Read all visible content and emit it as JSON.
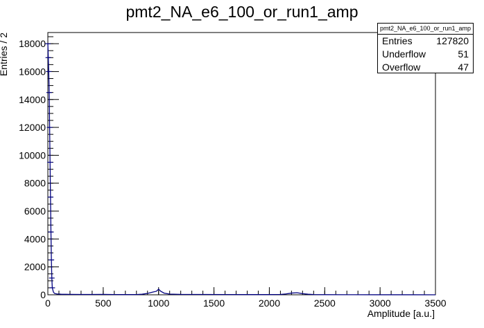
{
  "chart_data": {
    "type": "histogram",
    "title": "pmt2_NA_e6_100_or_run1_amp",
    "xlabel": "Amplitude [a.u.]",
    "ylabel": "Entries / 2",
    "xlim": [
      0,
      3500
    ],
    "ylim": [
      0,
      18800
    ],
    "x_ticks": [
      "0",
      "500",
      "1000",
      "1500",
      "2000",
      "2500",
      "3000",
      "3500"
    ],
    "y_ticks": [
      "0",
      "2000",
      "4000",
      "6000",
      "8000",
      "10000",
      "12000",
      "14000",
      "16000",
      "18000"
    ],
    "line_color": "#000080",
    "series": [
      {
        "x": [
          0,
          4,
          8,
          12,
          16,
          20,
          24,
          28,
          32,
          36,
          40,
          50,
          60,
          80,
          120,
          200,
          300,
          400,
          500,
          600,
          700,
          800,
          850,
          900,
          950,
          980,
          1000,
          1020,
          1050,
          1100,
          1200,
          1400,
          1600,
          1800,
          2000,
          2100,
          2150,
          2200,
          2250,
          2300,
          2350,
          2400,
          2500,
          2700,
          3000,
          3300,
          3500
        ],
        "y": [
          18000,
          17000,
          16000,
          14500,
          12000,
          9500,
          7000,
          4500,
          2500,
          1200,
          500,
          200,
          100,
          60,
          40,
          30,
          25,
          25,
          30,
          20,
          15,
          20,
          40,
          100,
          200,
          250,
          400,
          250,
          120,
          50,
          30,
          25,
          20,
          15,
          15,
          25,
          60,
          120,
          150,
          80,
          40,
          20,
          10,
          5,
          3,
          2,
          0
        ]
      }
    ]
  },
  "stats": {
    "name": "pmt2_NA_e6_100_or_run1_amp",
    "rows": [
      {
        "label": "Entries",
        "value": "127820"
      },
      {
        "label": "Underflow",
        "value": "51"
      },
      {
        "label": "Overflow",
        "value": "47"
      }
    ]
  }
}
